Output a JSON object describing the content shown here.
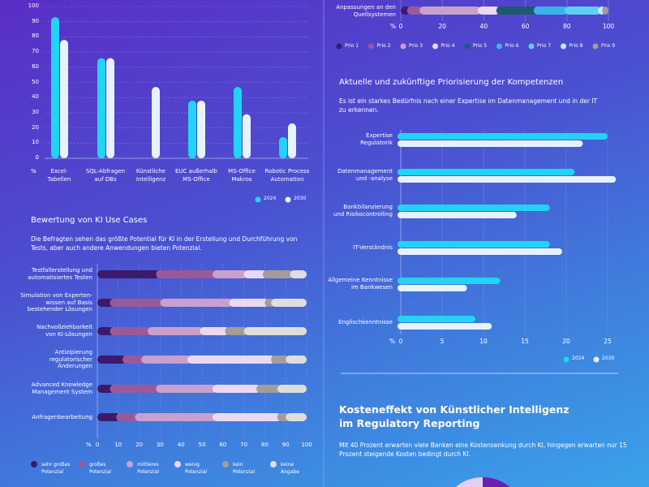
{
  "colors": {
    "cyan": "#22d3f5",
    "white": "#e6f3ff",
    "grid": "#8fa0e8"
  },
  "chart_data": [
    {
      "type": "bar",
      "orientation": "vertical",
      "categories": [
        "Excel-\nTabellen",
        "SQL-Abfragen\nauf DBs",
        "Künstliche\nIntelligenz",
        "EUC außerhalb\nMS-Office",
        "MS-Office\nMakros",
        "Robotic Process\nAutomation"
      ],
      "series": [
        {
          "name": "2024",
          "color": "#22d3f5",
          "values": [
            93,
            66,
            0,
            38,
            47,
            14
          ]
        },
        {
          "name": "2030",
          "color": "#e6f3ff",
          "values": [
            78,
            66,
            47,
            38,
            29,
            23
          ]
        }
      ],
      "ylabel": "%",
      "ylim": [
        0,
        100
      ],
      "yticks": [
        "0",
        "10",
        "20",
        "30",
        "40",
        "50",
        "60",
        "70",
        "80",
        "90",
        "100"
      ],
      "grid": true,
      "legend": "bottom-right"
    },
    {
      "type": "bar",
      "orientation": "horizontal-stacked",
      "categories": [
        "Anpassungen an den\nQuellsystemen"
      ],
      "series": [
        {
          "name": "Prio 1",
          "color": "#3b1a6b",
          "values": [
            3
          ]
        },
        {
          "name": "Prio 2",
          "color": "#9a5a9a",
          "values": [
            6
          ]
        },
        {
          "name": "Prio 3",
          "color": "#c9a0cc",
          "values": [
            28
          ]
        },
        {
          "name": "Prio 4",
          "color": "#ecd8f0",
          "values": [
            9
          ]
        },
        {
          "name": "Prio 5",
          "color": "#1e5a6e",
          "values": [
            18
          ]
        },
        {
          "name": "Prio 6",
          "color": "#3ab4e6",
          "values": [
            15
          ]
        },
        {
          "name": "Prio 7",
          "color": "#5fd0f2",
          "values": [
            16
          ]
        },
        {
          "name": "Prio 8",
          "color": "#c4ecfb",
          "values": [
            2
          ]
        },
        {
          "name": "Prio 9",
          "color": "#a39c98",
          "values": [
            3
          ]
        }
      ],
      "xlabel": "%",
      "xlim": [
        0,
        100
      ],
      "xticks": [
        "0",
        "20",
        "40",
        "60",
        "80",
        "100"
      ],
      "legend": "bottom"
    },
    {
      "type": "bar",
      "orientation": "horizontal-stacked",
      "title": "Bewertung von KI Use Cases",
      "subtitle": "Die Befragten sehen das größte Potential für KI in der Erstellung und Durchführung von Tests, aber auch andere Anwendungen bieten Potenzial.",
      "categories": [
        "Testfallerstellung und\nautomatisiertes Testen",
        "Simulation von Experten-\nwissen auf Basis\nbestehender Lösungen",
        "Nachvollziehbarkeit\nvon KI-Lösungen",
        "Antizipierung\nregulatorischer\nÄnderungen",
        "Advanced Knowledge\nManagement System",
        "Anfragenbearbeitung"
      ],
      "series": [
        {
          "name": "sehr großes\nPotenzial",
          "color": "#3b1a6b",
          "values": [
            28,
            6,
            6,
            12,
            6,
            9
          ]
        },
        {
          "name": "großes\nPotenzial",
          "color": "#9a5a9a",
          "values": [
            27,
            24,
            18,
            9,
            22,
            9
          ]
        },
        {
          "name": "mittleres\nPotenzial",
          "color": "#c9a0cc",
          "values": [
            15,
            33,
            25,
            22,
            27,
            37
          ]
        },
        {
          "name": "wenig\nPotenzial",
          "color": "#ecd8f0",
          "values": [
            9,
            17,
            12,
            40,
            21,
            31
          ]
        },
        {
          "name": "kein\nPotenzial",
          "color": "#a39c98",
          "values": [
            13,
            3,
            9,
            7,
            10,
            4
          ]
        },
        {
          "name": "keine\nAngabe",
          "color": "#dedede",
          "values": [
            8,
            17,
            30,
            10,
            14,
            10
          ]
        }
      ],
      "xlabel": "%",
      "xlim": [
        0,
        100
      ],
      "xticks": [
        "0",
        "10",
        "20",
        "30",
        "40",
        "50",
        "60",
        "70",
        "80",
        "90",
        "100"
      ],
      "grid": true,
      "legend": "bottom"
    },
    {
      "type": "bar",
      "orientation": "horizontal",
      "title": "Aktuelle und zukünftige Priorisierung der Kompetenzen",
      "subtitle": "Es ist ein starkes Bedürfnis nach einer Expertise im Datenmanagement und in der IT zu erkennen.",
      "categories": [
        "Expertise\nRegulatorik",
        "Datenmanagement\nund -analyse",
        "Bankbilanzierung\nund Risikocontrolling",
        "IT-Verständnis",
        "Allgemeine Kenntnisse\nim Bankwesen",
        "Englischkenntnisse"
      ],
      "series": [
        {
          "name": "2024",
          "color": "#22d3f5",
          "values": [
            25,
            21,
            18,
            18,
            12,
            9
          ]
        },
        {
          "name": "2030",
          "color": "#e6f3ff",
          "values": [
            22,
            26,
            14,
            19.5,
            8,
            11
          ]
        }
      ],
      "xlabel": "%",
      "xlim": [
        0,
        26
      ],
      "xticks": [
        "0",
        "5",
        "10",
        "15",
        "20",
        "25"
      ],
      "grid": true,
      "legend": "bottom-right"
    },
    {
      "type": "pie",
      "title": "Kosteneffekt von Künstlicher Intelligenz\nim Regulatory Reporting",
      "subtitle": "Mit 40 Prozent erwarten viele Banken eine Kostensenkung durch KI, hingegen erwarten nur 15 Prozent steigende Kosten bedingt durch KI."
    }
  ]
}
